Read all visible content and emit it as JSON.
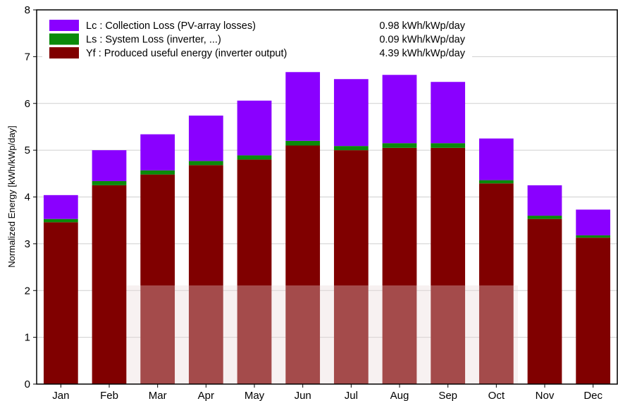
{
  "chart_data": {
    "type": "bar",
    "stacked": true,
    "ylabel": "Normalized Energy [kWh/kWp/day]",
    "ylim": [
      0,
      8
    ],
    "yticks": [
      "0",
      "1",
      "2",
      "3",
      "4",
      "5",
      "6",
      "7",
      "8"
    ],
    "grid": true,
    "legend_position": "top-left",
    "categories": [
      "Jan",
      "Feb",
      "Mar",
      "Apr",
      "May",
      "Jun",
      "Jul",
      "Aug",
      "Sep",
      "Oct",
      "Nov",
      "Dec"
    ],
    "series": [
      {
        "name": "Yf : Produced useful energy  (inverter output)",
        "value_label": "4.39 kWh/kWp/day",
        "color": "#800000",
        "values": [
          3.46,
          4.25,
          4.48,
          4.68,
          4.8,
          5.1,
          5.0,
          5.05,
          5.05,
          4.29,
          3.53,
          3.13
        ]
      },
      {
        "name": "Ls : System Loss  (inverter, ...)",
        "value_label": "0.09 kWh/kWp/day",
        "color": "#0a8a0a",
        "values": [
          0.07,
          0.09,
          0.09,
          0.09,
          0.09,
          0.1,
          0.09,
          0.1,
          0.1,
          0.07,
          0.07,
          0.05
        ]
      },
      {
        "name": "Lc : Collection Loss (PV-array losses)",
        "value_label": "0.98 kWh/kWp/day",
        "color": "#8a00ff",
        "values": [
          0.51,
          0.66,
          0.77,
          0.97,
          1.17,
          1.47,
          1.43,
          1.46,
          1.31,
          0.89,
          0.65,
          0.55
        ]
      }
    ]
  }
}
